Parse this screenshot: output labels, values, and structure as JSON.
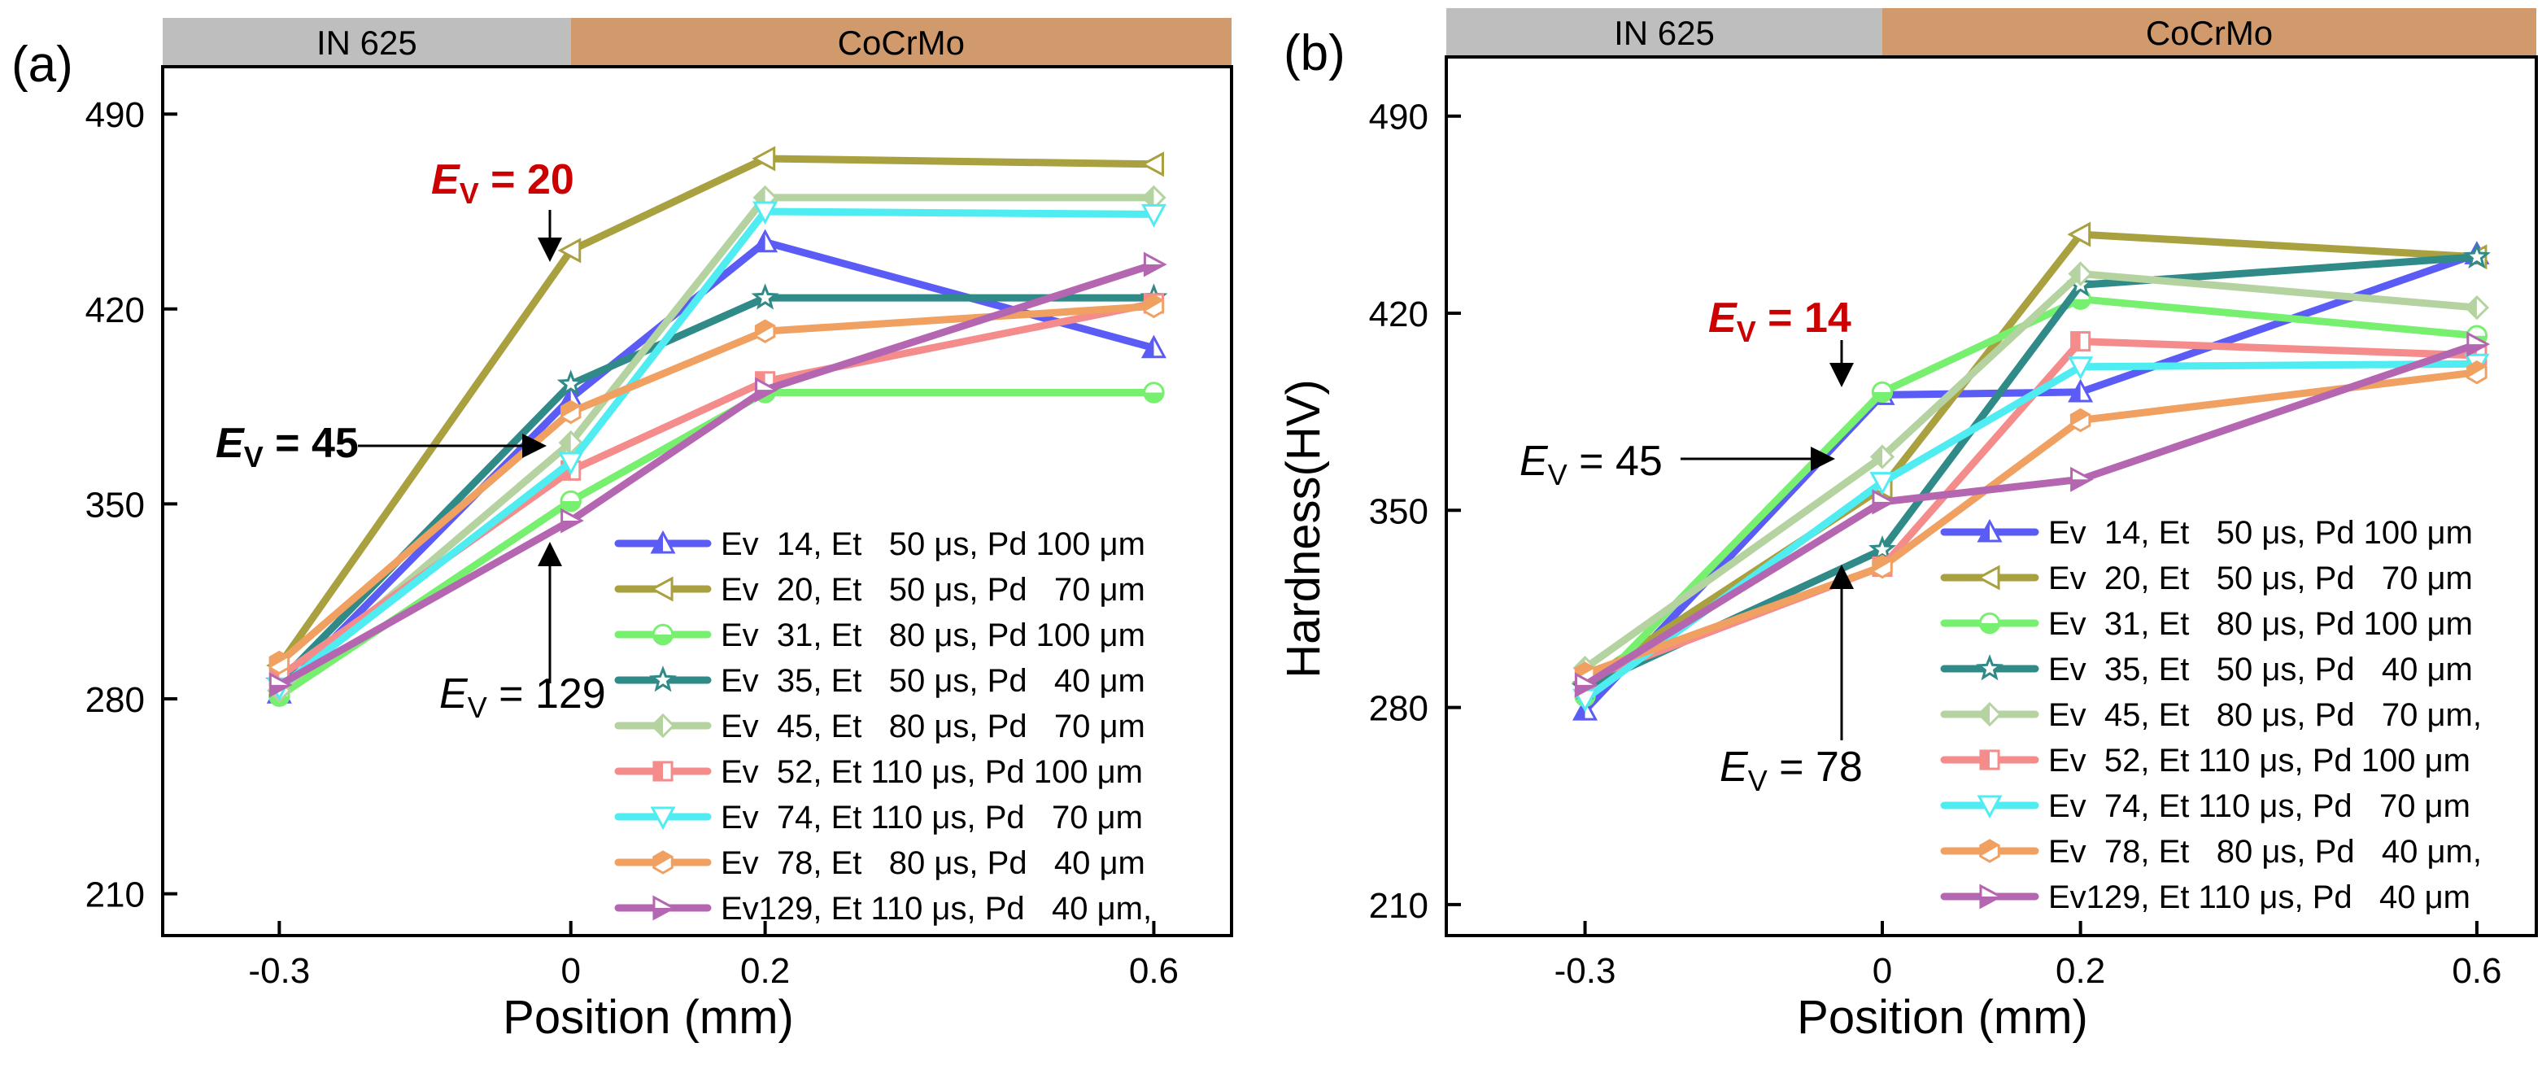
{
  "chart_data": [
    {
      "type": "line",
      "panel_label": "(a)",
      "xlabel": "Position (mm)",
      "ylabel": "",
      "x": [
        -0.3,
        0,
        0.2,
        0.6
      ],
      "x_tick_labels": [
        "-0.3",
        "0",
        "0.2",
        "0.6"
      ],
      "y_ticks": [
        210,
        280,
        350,
        420,
        490
      ],
      "ylim": [
        195,
        507
      ],
      "material_bands": [
        {
          "label": "IN 625",
          "color": "#bebebe",
          "x_from": -0.42,
          "x_to": 0
        },
        {
          "label": "CoCrMo",
          "color": "#d09a6c",
          "x_from": 0,
          "x_to": 0.68
        }
      ],
      "series": [
        {
          "name": "Ev  14, Et   50 μs, Pd 100 μm",
          "color": "#5b5bf5",
          "marker": "triangle-up",
          "values": [
            282,
            388,
            444,
            406
          ]
        },
        {
          "name": "Ev  20, Et   50 μs, Pd   70 μm",
          "color": "#a9a03f",
          "marker": "triangle-left",
          "values": [
            292,
            441,
            474,
            472
          ]
        },
        {
          "name": "Ev  31, Et   80 μs, Pd 100 μm",
          "color": "#76f06e",
          "marker": "circle",
          "values": [
            281,
            351,
            390,
            390
          ]
        },
        {
          "name": "Ev  35, Et   50 μs, Pd   40 μm",
          "color": "#2f8a88",
          "marker": "star",
          "values": [
            286,
            393,
            424,
            424
          ]
        },
        {
          "name": "Ev  45, Et   80 μs, Pd   70 μm",
          "color": "#b4d3a0",
          "marker": "diamond",
          "values": [
            283,
            372,
            460,
            460
          ]
        },
        {
          "name": "Ev  52, Et 110 μs, Pd 100 μm",
          "color": "#f58c8c",
          "marker": "square",
          "values": [
            288,
            362,
            394,
            422
          ]
        },
        {
          "name": "Ev  74, Et 110 μs, Pd   70 μm",
          "color": "#4fecf2",
          "marker": "triangle-down",
          "values": [
            284,
            365,
            455,
            454
          ]
        },
        {
          "name": "Ev  78, Et   80 μs, Pd   40 μm",
          "color": "#f0a060",
          "marker": "hexagon",
          "values": [
            293,
            383,
            412,
            421
          ]
        },
        {
          "name": "Ev129, Et 110 μs, Pd   40 μm,",
          "color": "#b566b0",
          "marker": "triangle-right",
          "values": [
            285,
            344,
            391,
            436
          ]
        }
      ],
      "annotations": [
        {
          "italic": "E",
          "sub": "V",
          "rest": " = 20",
          "bold": true,
          "color": "#cc0000",
          "arrow_to": {
            "x": 0,
            "y": 441
          }
        },
        {
          "italic": "E",
          "sub": "V",
          "rest": " = 45",
          "bold": true,
          "color": "#000000",
          "arrow_to": {
            "x": 0,
            "y": 376
          }
        },
        {
          "italic": "E",
          "sub": "V",
          "rest": " = 129",
          "bold": false,
          "color": "#000000",
          "arrow_to": {
            "x": 0,
            "y": 340
          }
        }
      ]
    },
    {
      "type": "line",
      "panel_label": "(b)",
      "xlabel": "Position (mm)",
      "ylabel": "Hardness(HV)",
      "x": [
        -0.3,
        0,
        0.2,
        0.6
      ],
      "x_tick_labels": [
        "-0.3",
        "0",
        "0.2",
        "0.6"
      ],
      "y_ticks": [
        210,
        280,
        350,
        420,
        490
      ],
      "ylim": [
        199,
        511
      ],
      "material_bands": [
        {
          "label": "IN 625",
          "color": "#bebebe",
          "x_from": -0.44,
          "x_to": 0
        },
        {
          "label": "CoCrMo",
          "color": "#d09a6c",
          "x_from": 0,
          "x_to": 0.66
        }
      ],
      "series": [
        {
          "name": "Ev  14, Et   50 μs, Pd 100 μm",
          "color": "#5b5bf5",
          "marker": "triangle-up",
          "values": [
            279,
            391,
            392,
            441
          ]
        },
        {
          "name": "Ev  20, Et   50 μs, Pd   70 μm",
          "color": "#a9a03f",
          "marker": "triangle-left",
          "values": [
            289,
            358,
            448,
            440
          ]
        },
        {
          "name": "Ev  31, Et   80 μs, Pd 100 μm",
          "color": "#76f06e",
          "marker": "circle",
          "values": [
            284,
            392,
            425,
            412
          ]
        },
        {
          "name": "Ev  35, Et   50 μs, Pd   40 μm",
          "color": "#2f8a88",
          "marker": "star",
          "values": [
            287,
            336,
            430,
            440
          ]
        },
        {
          "name": "Ev  45, Et   80 μs, Pd   70 μm,",
          "color": "#b4d3a0",
          "marker": "diamond",
          "values": [
            294,
            369,
            434,
            422
          ]
        },
        {
          "name": "Ev  52, Et 110 μs, Pd 100 μm",
          "color": "#f58c8c",
          "marker": "square",
          "values": [
            290,
            330,
            410,
            405
          ]
        },
        {
          "name": "Ev  74, Et 110 μs, Pd   70 μm",
          "color": "#4fecf2",
          "marker": "triangle-down",
          "values": [
            283,
            360,
            401,
            402
          ]
        },
        {
          "name": "Ev  78, Et   80 μs, Pd   40 μm,",
          "color": "#f0a060",
          "marker": "hexagon",
          "values": [
            292,
            330,
            382,
            399
          ]
        },
        {
          "name": "Ev129, Et 110 μs, Pd   40 μm",
          "color": "#b566b0",
          "marker": "triangle-right",
          "values": [
            288,
            353,
            361,
            409
          ]
        }
      ],
      "annotations": [
        {
          "italic": "E",
          "sub": "V",
          "rest": " = 14",
          "bold": true,
          "color": "#cc0000",
          "arrow_to": {
            "x": 0,
            "y": 392
          }
        },
        {
          "italic": "E",
          "sub": "V",
          "rest": " = 45",
          "bold": false,
          "color": "#000000",
          "arrow_to": {
            "x": 0,
            "y": 369
          }
        },
        {
          "italic": "E",
          "sub": "V",
          "rest": " = 78",
          "bold": false,
          "color": "#000000",
          "arrow_to": {
            "x": 0,
            "y": 325
          }
        }
      ]
    }
  ]
}
